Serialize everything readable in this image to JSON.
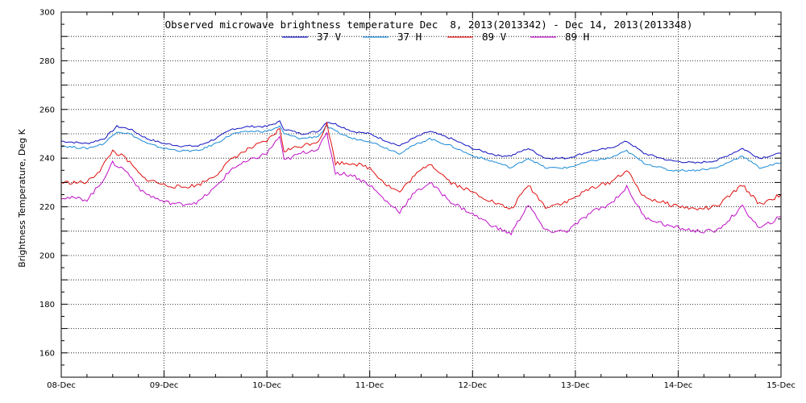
{
  "chart_data": {
    "type": "line",
    "title": "Observed microwave brightness temperature Dec  8, 2013(2013342) - Dec 14, 2013(2013348)",
    "xlabel": "",
    "ylabel": "Brightness Temperature, Deg K",
    "ylim": [
      150,
      300
    ],
    "xlim": [
      "2013-12-08",
      "2013-12-15"
    ],
    "y_ticks": [
      160,
      180,
      200,
      220,
      240,
      260,
      280,
      300
    ],
    "x_ticks": [
      "08-Dec",
      "09-Dec",
      "10-Dec",
      "11-Dec",
      "12-Dec",
      "13-Dec",
      "14-Dec",
      "15-Dec"
    ],
    "grid": true,
    "legend": "top-center",
    "series": [
      {
        "name": "37 V",
        "color": "#1010c0",
        "points": [
          [
            "2013-12-08 00:00",
            247
          ],
          [
            "2013-12-08 06:00",
            246
          ],
          [
            "2013-12-08 10:00",
            248
          ],
          [
            "2013-12-08 13:00",
            253
          ],
          [
            "2013-12-08 16:00",
            252
          ],
          [
            "2013-12-08 20:00",
            248
          ],
          [
            "2013-12-09 00:00",
            246
          ],
          [
            "2013-12-09 04:00",
            245
          ],
          [
            "2013-12-09 08:00",
            245
          ],
          [
            "2013-12-09 12:00",
            248
          ],
          [
            "2013-12-09 16:00",
            252
          ],
          [
            "2013-12-09 20:00",
            253
          ],
          [
            "2013-12-10 00:00",
            253
          ],
          [
            "2013-12-10 03:00",
            255
          ],
          [
            "2013-12-10 04:00",
            252
          ],
          [
            "2013-12-10 08:00",
            250
          ],
          [
            "2013-12-10 12:00",
            251
          ],
          [
            "2013-12-10 14:00",
            255
          ],
          [
            "2013-12-10 16:00",
            254
          ],
          [
            "2013-12-10 20:00",
            251
          ],
          [
            "2013-12-11 00:00",
            250
          ],
          [
            "2013-12-11 04:00",
            247
          ],
          [
            "2013-12-11 07:00",
            245
          ],
          [
            "2013-12-11 10:00",
            248
          ],
          [
            "2013-12-11 14:00",
            251
          ],
          [
            "2013-12-11 19:00",
            248
          ],
          [
            "2013-12-12 00:00",
            244
          ],
          [
            "2013-12-12 06:00",
            241
          ],
          [
            "2013-12-12 09:00",
            241
          ],
          [
            "2013-12-12 13:00",
            244
          ],
          [
            "2013-12-12 17:00",
            240
          ],
          [
            "2013-12-12 22:00",
            240
          ],
          [
            "2013-12-13 04:00",
            243
          ],
          [
            "2013-12-13 08:00",
            244
          ],
          [
            "2013-12-13 12:00",
            247
          ],
          [
            "2013-12-13 16:00",
            242
          ],
          [
            "2013-12-13 22:00",
            239
          ],
          [
            "2013-12-14 04:00",
            238
          ],
          [
            "2013-12-14 09:00",
            239
          ],
          [
            "2013-12-14 15:00",
            244
          ],
          [
            "2013-12-14 19:00",
            240
          ],
          [
            "2013-12-15 00:00",
            242
          ]
        ]
      },
      {
        "name": "37 H",
        "color": "#1a8ad8",
        "points": [
          [
            "2013-12-08 00:00",
            245
          ],
          [
            "2013-12-08 06:00",
            244
          ],
          [
            "2013-12-08 10:00",
            246
          ],
          [
            "2013-12-08 13:00",
            251
          ],
          [
            "2013-12-08 16:00",
            250
          ],
          [
            "2013-12-08 20:00",
            246
          ],
          [
            "2013-12-09 00:00",
            244
          ],
          [
            "2013-12-09 04:00",
            243
          ],
          [
            "2013-12-09 08:00",
            243
          ],
          [
            "2013-12-09 12:00",
            246
          ],
          [
            "2013-12-09 16:00",
            250
          ],
          [
            "2013-12-09 20:00",
            251
          ],
          [
            "2013-12-10 00:00",
            251
          ],
          [
            "2013-12-10 03:00",
            253
          ],
          [
            "2013-12-10 04:00",
            250
          ],
          [
            "2013-12-10 08:00",
            248
          ],
          [
            "2013-12-10 12:00",
            249
          ],
          [
            "2013-12-10 14:00",
            253
          ],
          [
            "2013-12-10 16:00",
            251
          ],
          [
            "2013-12-10 20:00",
            248
          ],
          [
            "2013-12-11 00:00",
            247
          ],
          [
            "2013-12-11 04:00",
            244
          ],
          [
            "2013-12-11 07:00",
            242
          ],
          [
            "2013-12-11 10:00",
            245
          ],
          [
            "2013-12-11 14:00",
            248
          ],
          [
            "2013-12-11 19:00",
            245
          ],
          [
            "2013-12-12 00:00",
            241
          ],
          [
            "2013-12-12 06:00",
            238
          ],
          [
            "2013-12-12 09:00",
            236
          ],
          [
            "2013-12-12 13:00",
            240
          ],
          [
            "2013-12-12 17:00",
            236
          ],
          [
            "2013-12-12 22:00",
            236
          ],
          [
            "2013-12-13 04:00",
            239
          ],
          [
            "2013-12-13 08:00",
            240
          ],
          [
            "2013-12-13 12:00",
            243
          ],
          [
            "2013-12-13 16:00",
            238
          ],
          [
            "2013-12-13 22:00",
            235
          ],
          [
            "2013-12-14 04:00",
            235
          ],
          [
            "2013-12-14 09:00",
            236
          ],
          [
            "2013-12-14 15:00",
            241
          ],
          [
            "2013-12-14 19:00",
            236
          ],
          [
            "2013-12-15 00:00",
            238
          ]
        ]
      },
      {
        "name": "89 V",
        "color": "#e01010",
        "points": [
          [
            "2013-12-08 00:00",
            230
          ],
          [
            "2013-12-08 06:00",
            230
          ],
          [
            "2013-12-08 09:00",
            235
          ],
          [
            "2013-12-08 12:00",
            243
          ],
          [
            "2013-12-08 15:00",
            240
          ],
          [
            "2013-12-08 19:00",
            232
          ],
          [
            "2013-12-09 00:00",
            229
          ],
          [
            "2013-12-09 04:00",
            228
          ],
          [
            "2013-12-09 08:00",
            229
          ],
          [
            "2013-12-09 12:00",
            233
          ],
          [
            "2013-12-09 16:00",
            240
          ],
          [
            "2013-12-09 20:00",
            244
          ],
          [
            "2013-12-10 00:00",
            247
          ],
          [
            "2013-12-10 03:00",
            252
          ],
          [
            "2013-12-10 04:00",
            243
          ],
          [
            "2013-12-10 08:00",
            245
          ],
          [
            "2013-12-10 12:00",
            247
          ],
          [
            "2013-12-10 14:00",
            254
          ],
          [
            "2013-12-10 16:00",
            238
          ],
          [
            "2013-12-10 20:00",
            238
          ],
          [
            "2013-12-11 00:00",
            236
          ],
          [
            "2013-12-11 04:00",
            229
          ],
          [
            "2013-12-11 07:00",
            226
          ],
          [
            "2013-12-11 10:00",
            232
          ],
          [
            "2013-12-11 14:00",
            238
          ],
          [
            "2013-12-11 19:00",
            230
          ],
          [
            "2013-12-12 00:00",
            226
          ],
          [
            "2013-12-12 06:00",
            221
          ],
          [
            "2013-12-12 09:00",
            219
          ],
          [
            "2013-12-12 13:00",
            229
          ],
          [
            "2013-12-12 17:00",
            220
          ],
          [
            "2013-12-12 22:00",
            222
          ],
          [
            "2013-12-13 04:00",
            228
          ],
          [
            "2013-12-13 08:00",
            230
          ],
          [
            "2013-12-13 12:00",
            235
          ],
          [
            "2013-12-13 16:00",
            224
          ],
          [
            "2013-12-13 22:00",
            221
          ],
          [
            "2013-12-14 04:00",
            219
          ],
          [
            "2013-12-14 09:00",
            220
          ],
          [
            "2013-12-14 15:00",
            229
          ],
          [
            "2013-12-14 19:00",
            221
          ],
          [
            "2013-12-15 00:00",
            225
          ]
        ]
      },
      {
        "name": "89 H",
        "color": "#c010c8",
        "points": [
          [
            "2013-12-08 00:00",
            224
          ],
          [
            "2013-12-08 06:00",
            223
          ],
          [
            "2013-12-08 09:00",
            229
          ],
          [
            "2013-12-08 12:00",
            238
          ],
          [
            "2013-12-08 15:00",
            235
          ],
          [
            "2013-12-08 19:00",
            226
          ],
          [
            "2013-12-09 00:00",
            222
          ],
          [
            "2013-12-09 04:00",
            221
          ],
          [
            "2013-12-09 08:00",
            222
          ],
          [
            "2013-12-09 12:00",
            228
          ],
          [
            "2013-12-09 16:00",
            236
          ],
          [
            "2013-12-09 20:00",
            239
          ],
          [
            "2013-12-10 00:00",
            242
          ],
          [
            "2013-12-10 03:00",
            249
          ],
          [
            "2013-12-10 04:00",
            239
          ],
          [
            "2013-12-10 08:00",
            242
          ],
          [
            "2013-12-10 12:00",
            244
          ],
          [
            "2013-12-10 14:00",
            250
          ],
          [
            "2013-12-10 16:00",
            234
          ],
          [
            "2013-12-10 20:00",
            233
          ],
          [
            "2013-12-11 00:00",
            229
          ],
          [
            "2013-12-11 04:00",
            222
          ],
          [
            "2013-12-11 07:00",
            218
          ],
          [
            "2013-12-11 10:00",
            225
          ],
          [
            "2013-12-11 14:00",
            230
          ],
          [
            "2013-12-11 19:00",
            222
          ],
          [
            "2013-12-12 00:00",
            217
          ],
          [
            "2013-12-12 06:00",
            211
          ],
          [
            "2013-12-12 09:00",
            209
          ],
          [
            "2013-12-12 13:00",
            221
          ],
          [
            "2013-12-12 17:00",
            210
          ],
          [
            "2013-12-12 22:00",
            210
          ],
          [
            "2013-12-13 04:00",
            218
          ],
          [
            "2013-12-13 08:00",
            221
          ],
          [
            "2013-12-13 12:00",
            228
          ],
          [
            "2013-12-13 16:00",
            216
          ],
          [
            "2013-12-13 22:00",
            212
          ],
          [
            "2013-12-14 04:00",
            210
          ],
          [
            "2013-12-14 09:00",
            210
          ],
          [
            "2013-12-14 15:00",
            220
          ],
          [
            "2013-12-14 19:00",
            211
          ],
          [
            "2013-12-15 00:00",
            216
          ]
        ]
      }
    ]
  }
}
